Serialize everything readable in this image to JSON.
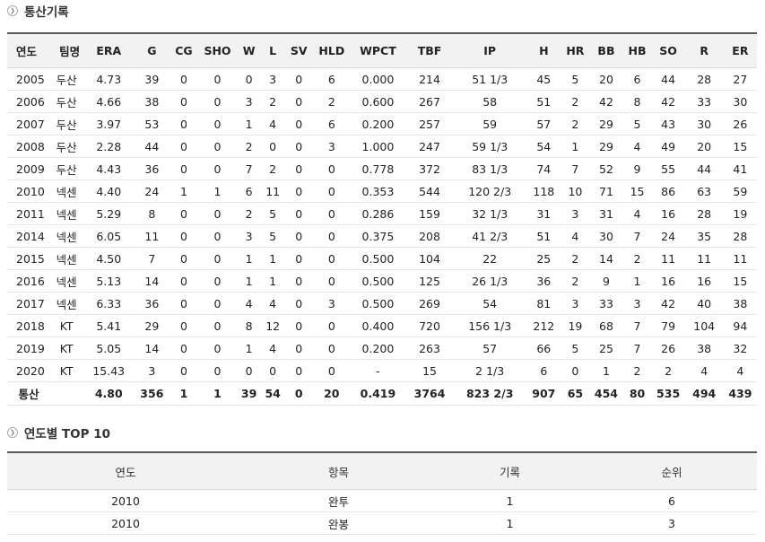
{
  "section1_title": "통산기록",
  "section2_title": "연도별 TOP 10",
  "stats": {
    "headers": [
      "연도",
      "팀명",
      "ERA",
      "G",
      "CG",
      "SHO",
      "W",
      "L",
      "SV",
      "HLD",
      "WPCT",
      "TBF",
      "IP",
      "H",
      "HR",
      "BB",
      "HB",
      "SO",
      "R",
      "ER"
    ],
    "rows": [
      [
        "2005",
        "두산",
        "4.73",
        "39",
        "0",
        "0",
        "0",
        "3",
        "0",
        "6",
        "0.000",
        "214",
        "51 1/3",
        "45",
        "5",
        "20",
        "6",
        "44",
        "28",
        "27"
      ],
      [
        "2006",
        "두산",
        "4.66",
        "38",
        "0",
        "0",
        "3",
        "2",
        "0",
        "2",
        "0.600",
        "267",
        "58",
        "51",
        "2",
        "42",
        "8",
        "42",
        "33",
        "30"
      ],
      [
        "2007",
        "두산",
        "3.97",
        "53",
        "0",
        "0",
        "1",
        "4",
        "0",
        "6",
        "0.200",
        "257",
        "59",
        "57",
        "2",
        "29",
        "5",
        "43",
        "30",
        "26"
      ],
      [
        "2008",
        "두산",
        "2.28",
        "44",
        "0",
        "0",
        "2",
        "0",
        "0",
        "3",
        "1.000",
        "247",
        "59 1/3",
        "54",
        "1",
        "29",
        "4",
        "49",
        "20",
        "15"
      ],
      [
        "2009",
        "두산",
        "4.43",
        "36",
        "0",
        "0",
        "7",
        "2",
        "0",
        "0",
        "0.778",
        "372",
        "83 1/3",
        "74",
        "7",
        "52",
        "9",
        "55",
        "44",
        "41"
      ],
      [
        "2010",
        "넥센",
        "4.40",
        "24",
        "1",
        "1",
        "6",
        "11",
        "0",
        "0",
        "0.353",
        "544",
        "120 2/3",
        "118",
        "10",
        "71",
        "15",
        "86",
        "63",
        "59"
      ],
      [
        "2011",
        "넥센",
        "5.29",
        "8",
        "0",
        "0",
        "2",
        "5",
        "0",
        "0",
        "0.286",
        "159",
        "32 1/3",
        "31",
        "3",
        "31",
        "4",
        "16",
        "28",
        "19"
      ],
      [
        "2014",
        "넥센",
        "6.05",
        "11",
        "0",
        "0",
        "3",
        "5",
        "0",
        "0",
        "0.375",
        "208",
        "41 2/3",
        "51",
        "4",
        "30",
        "7",
        "24",
        "35",
        "28"
      ],
      [
        "2015",
        "넥센",
        "4.50",
        "7",
        "0",
        "0",
        "1",
        "1",
        "0",
        "0",
        "0.500",
        "104",
        "22",
        "25",
        "2",
        "14",
        "2",
        "11",
        "11",
        "11"
      ],
      [
        "2016",
        "넥센",
        "5.13",
        "14",
        "0",
        "0",
        "1",
        "1",
        "0",
        "0",
        "0.500",
        "125",
        "26 1/3",
        "36",
        "2",
        "9",
        "1",
        "16",
        "16",
        "15"
      ],
      [
        "2017",
        "넥센",
        "6.33",
        "36",
        "0",
        "0",
        "4",
        "4",
        "0",
        "3",
        "0.500",
        "269",
        "54",
        "81",
        "3",
        "33",
        "3",
        "42",
        "40",
        "38"
      ],
      [
        "2018",
        "KT",
        "5.41",
        "29",
        "0",
        "0",
        "8",
        "12",
        "0",
        "0",
        "0.400",
        "720",
        "156 1/3",
        "212",
        "19",
        "68",
        "7",
        "79",
        "104",
        "94"
      ],
      [
        "2019",
        "KT",
        "5.05",
        "14",
        "0",
        "0",
        "1",
        "4",
        "0",
        "0",
        "0.200",
        "263",
        "57",
        "66",
        "5",
        "25",
        "7",
        "26",
        "38",
        "32"
      ],
      [
        "2020",
        "KT",
        "15.43",
        "3",
        "0",
        "0",
        "0",
        "0",
        "0",
        "0",
        "-",
        "15",
        "2 1/3",
        "6",
        "0",
        "1",
        "2",
        "2",
        "4",
        "4"
      ]
    ],
    "total": [
      "통산",
      "",
      "4.80",
      "356",
      "1",
      "1",
      "39",
      "54",
      "0",
      "20",
      "0.419",
      "3764",
      "823 2/3",
      "907",
      "65",
      "454",
      "80",
      "535",
      "494",
      "439"
    ]
  },
  "top10": {
    "headers": [
      "연도",
      "항목",
      "기록",
      "순위"
    ],
    "rows": [
      [
        "2010",
        "완투",
        "1",
        "6"
      ],
      [
        "2010",
        "완봉",
        "1",
        "3"
      ]
    ]
  }
}
